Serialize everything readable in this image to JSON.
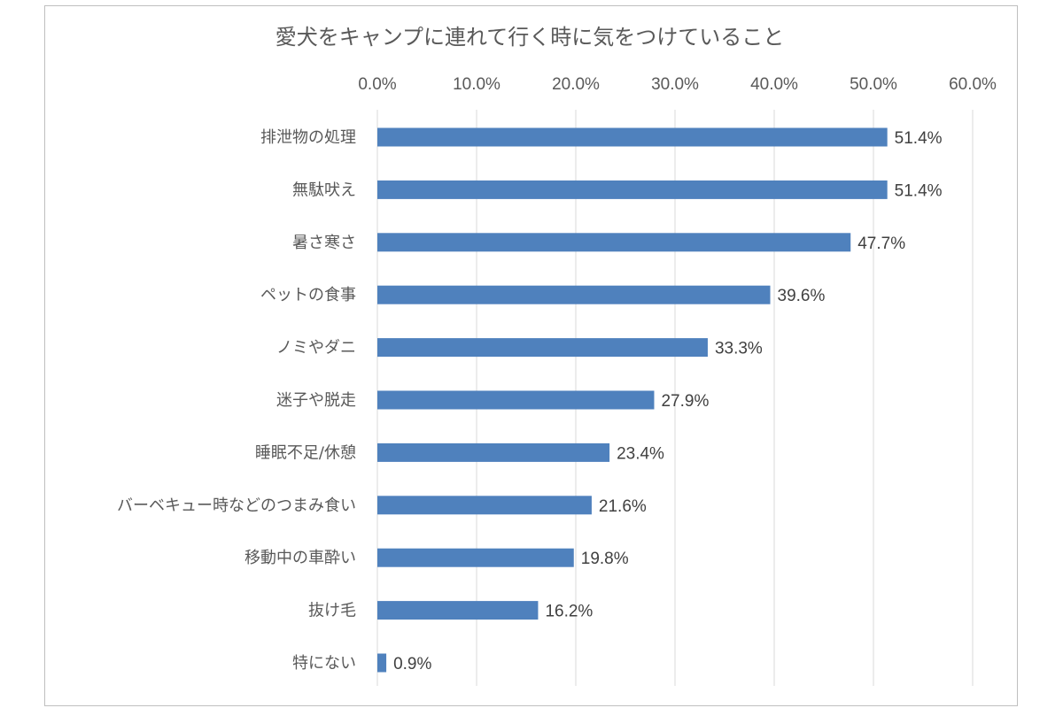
{
  "chart_data": {
    "type": "bar",
    "orientation": "horizontal",
    "title": "愛犬をキャンプに連れて行く時に気をつけていること",
    "categories": [
      "排泄物の処理",
      "無駄吠え",
      "暑さ寒さ",
      "ペットの食事",
      "ノミやダニ",
      "迷子や脱走",
      "睡眠不足/休憩",
      "バーベキュー時などのつまみ食い",
      "移動中の車酔い",
      "抜け毛",
      "特にない"
    ],
    "values": [
      51.4,
      51.4,
      47.7,
      39.6,
      33.3,
      27.9,
      23.4,
      21.6,
      19.8,
      16.2,
      0.9
    ],
    "value_labels": [
      "51.4%",
      "51.4%",
      "47.7%",
      "39.6%",
      "33.3%",
      "27.9%",
      "23.4%",
      "21.6%",
      "19.8%",
      "16.2%",
      "0.9%"
    ],
    "xlim": [
      0,
      60
    ],
    "xticks": [
      0,
      10,
      20,
      30,
      40,
      50,
      60
    ],
    "xtick_labels": [
      "0.0%",
      "10.0%",
      "20.0%",
      "30.0%",
      "40.0%",
      "50.0%",
      "60.0%"
    ],
    "x_axis_position": "top",
    "grid": true,
    "legend": "none",
    "colors": {
      "bar": "#4f81bd",
      "grid": "#d9d9d9",
      "text": "#595959",
      "frame": "#bfbfbf"
    }
  }
}
